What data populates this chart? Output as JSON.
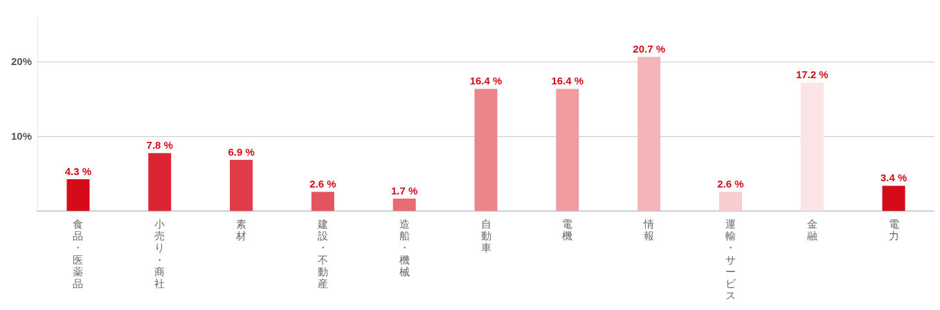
{
  "chart_data": {
    "type": "bar",
    "categories": [
      "食品・医薬品",
      "小売り・商社",
      "素材",
      "建設・不動産",
      "造船・機械",
      "自動車",
      "電機",
      "情報",
      "運輸・サービス",
      "金融",
      "電力"
    ],
    "values": [
      4.3,
      7.8,
      6.9,
      2.6,
      1.7,
      16.4,
      16.4,
      20.7,
      2.6,
      17.2,
      3.4
    ],
    "value_labels": [
      "4.3 %",
      "7.8 %",
      "6.9 %",
      "2.6 %",
      "1.7 %",
      "16.4 %",
      "16.4 %",
      "20.7 %",
      "2.6 %",
      "17.2 %",
      "3.4 %"
    ],
    "colors": [
      "#d60b19",
      "#dc2533",
      "#e03c47",
      "#e4545e",
      "#e86c74",
      "#ec858b",
      "#f09ca1",
      "#f3b5b8",
      "#f7cdd0",
      "#fbe4e5",
      "#d60b19"
    ],
    "yticks": [
      {
        "value": 0,
        "label": null
      },
      {
        "value": 10,
        "label": "10%"
      },
      {
        "value": 20,
        "label": "20%"
      }
    ],
    "ylim": [
      0,
      26
    ],
    "grid": "y",
    "legend": false
  }
}
